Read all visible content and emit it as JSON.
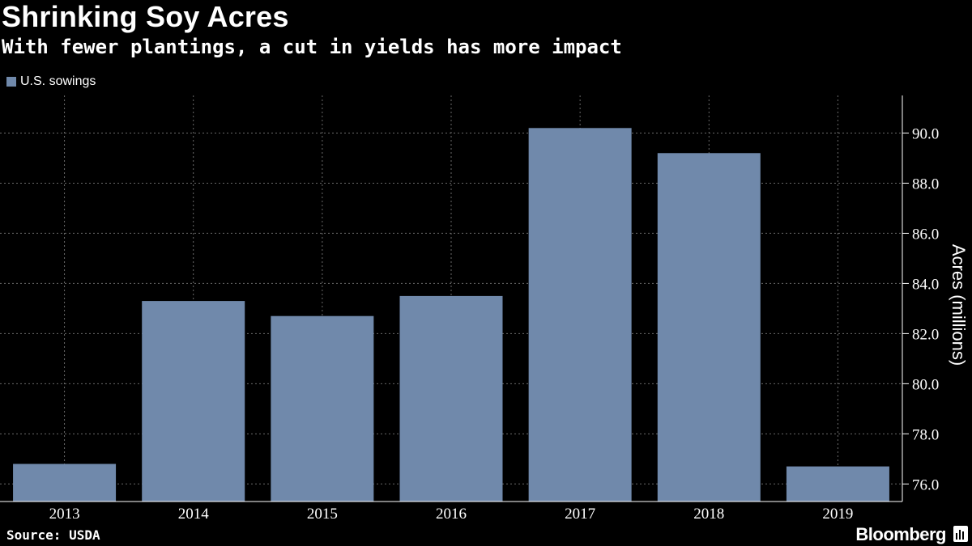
{
  "title": "Shrinking Soy Acres",
  "subtitle": "With fewer plantings, a cut in yields has more impact",
  "legend_label": "U.S. sowings",
  "source": "Source: USDA",
  "brand": "Bloomberg",
  "colors": {
    "background": "#000000",
    "bar": "#7089ab",
    "grid": "#6a6a6a",
    "text": "#ffffff"
  },
  "chart_data": {
    "type": "bar",
    "title": "Shrinking Soy Acres",
    "subtitle": "With fewer plantings, a cut in yields has more impact",
    "categories": [
      "2013",
      "2014",
      "2015",
      "2016",
      "2017",
      "2018",
      "2019"
    ],
    "series": [
      {
        "name": "U.S. sowings",
        "values": [
          76.8,
          83.3,
          82.7,
          83.5,
          90.2,
          89.2,
          76.7
        ]
      }
    ],
    "xlabel": "",
    "ylabel": "Acres (millions)",
    "ylim": [
      75.3,
      91.5
    ],
    "yticks": [
      "76.0",
      "78.0",
      "80.0",
      "82.0",
      "84.0",
      "86.0",
      "88.0",
      "90.0"
    ],
    "y_axis_position": "right",
    "grid": "dotted vertical and horizontal",
    "legend_position": "top-left"
  }
}
